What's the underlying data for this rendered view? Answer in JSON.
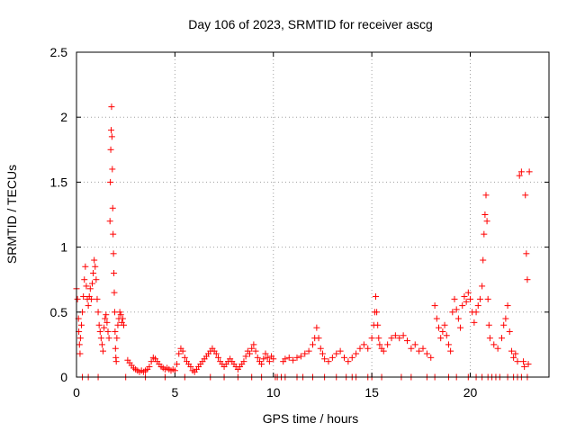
{
  "chart_data": {
    "type": "scatter",
    "title": "Day 106 of 2023, SRMTID for receiver ascg",
    "xlabel": "GPS time / hours",
    "ylabel": "SRMTID / TECUs",
    "xlim": [
      0,
      24
    ],
    "ylim": [
      0,
      2.5
    ],
    "x_ticks": [
      0,
      5,
      10,
      15,
      20
    ],
    "y_ticks": [
      0,
      0.5,
      1,
      1.5,
      2,
      2.5
    ],
    "x_tick_labels": [
      "0",
      "5",
      "10",
      "15",
      "20"
    ],
    "y_tick_labels": [
      "0",
      "0.5",
      "1",
      "1.5",
      "2",
      "2.5"
    ],
    "grid": true,
    "marker": "plus",
    "color": "#ff0000",
    "series": [
      {
        "name": "SRMTID",
        "points": [
          [
            0.0,
            0.68
          ],
          [
            0.05,
            0.6
          ],
          [
            0.1,
            0.45
          ],
          [
            0.12,
            0.35
          ],
          [
            0.15,
            0.25
          ],
          [
            0.18,
            0.18
          ],
          [
            0.2,
            0.3
          ],
          [
            0.25,
            0.4
          ],
          [
            0.3,
            0.5
          ],
          [
            0.35,
            0.62
          ],
          [
            0.4,
            0.75
          ],
          [
            0.45,
            0.85
          ],
          [
            0.5,
            0.7
          ],
          [
            0.55,
            0.6
          ],
          [
            0.6,
            0.55
          ],
          [
            0.65,
            0.62
          ],
          [
            0.7,
            0.68
          ],
          [
            0.75,
            0.6
          ],
          [
            0.8,
            0.72
          ],
          [
            0.85,
            0.8
          ],
          [
            0.9,
            0.9
          ],
          [
            0.95,
            0.85
          ],
          [
            1.0,
            0.75
          ],
          [
            1.05,
            0.6
          ],
          [
            1.1,
            0.5
          ],
          [
            1.15,
            0.4
          ],
          [
            1.2,
            0.35
          ],
          [
            1.25,
            0.3
          ],
          [
            1.3,
            0.25
          ],
          [
            1.35,
            0.2
          ],
          [
            1.4,
            0.38
          ],
          [
            1.45,
            0.45
          ],
          [
            1.5,
            0.48
          ],
          [
            1.55,
            0.42
          ],
          [
            1.6,
            0.35
          ],
          [
            1.65,
            0.3
          ],
          [
            1.7,
            1.2
          ],
          [
            1.72,
            1.5
          ],
          [
            1.74,
            1.75
          ],
          [
            1.76,
            1.9
          ],
          [
            1.78,
            2.08
          ],
          [
            1.8,
            1.85
          ],
          [
            1.82,
            1.6
          ],
          [
            1.84,
            1.3
          ],
          [
            1.86,
            1.1
          ],
          [
            1.88,
            0.95
          ],
          [
            1.9,
            0.8
          ],
          [
            1.92,
            0.65
          ],
          [
            1.94,
            0.5
          ],
          [
            1.96,
            0.35
          ],
          [
            1.98,
            0.22
          ],
          [
            2.0,
            0.15
          ],
          [
            2.02,
            0.12
          ],
          [
            2.05,
            0.3
          ],
          [
            2.1,
            0.4
          ],
          [
            2.15,
            0.45
          ],
          [
            2.2,
            0.5
          ],
          [
            2.25,
            0.48
          ],
          [
            2.3,
            0.42
          ],
          [
            2.35,
            0.45
          ],
          [
            2.4,
            0.4
          ],
          [
            2.6,
            0.13
          ],
          [
            2.7,
            0.11
          ],
          [
            2.8,
            0.09
          ],
          [
            2.9,
            0.07
          ],
          [
            3.0,
            0.06
          ],
          [
            3.1,
            0.05
          ],
          [
            3.2,
            0.04
          ],
          [
            3.3,
            0.05
          ],
          [
            3.4,
            0.04
          ],
          [
            3.5,
            0.05
          ],
          [
            3.6,
            0.06
          ],
          [
            3.7,
            0.08
          ],
          [
            3.8,
            0.12
          ],
          [
            3.9,
            0.15
          ],
          [
            4.0,
            0.14
          ],
          [
            4.1,
            0.12
          ],
          [
            4.2,
            0.1
          ],
          [
            4.3,
            0.08
          ],
          [
            4.4,
            0.07
          ],
          [
            4.5,
            0.06
          ],
          [
            4.6,
            0.07
          ],
          [
            4.7,
            0.06
          ],
          [
            4.8,
            0.05
          ],
          [
            4.9,
            0.06
          ],
          [
            5.0,
            0.05
          ],
          [
            5.1,
            0.1
          ],
          [
            5.2,
            0.18
          ],
          [
            5.3,
            0.22
          ],
          [
            5.4,
            0.2
          ],
          [
            5.5,
            0.15
          ],
          [
            5.6,
            0.12
          ],
          [
            5.7,
            0.1
          ],
          [
            5.8,
            0.08
          ],
          [
            5.9,
            0.05
          ],
          [
            6.0,
            0.04
          ],
          [
            6.1,
            0.06
          ],
          [
            6.2,
            0.08
          ],
          [
            6.3,
            0.1
          ],
          [
            6.4,
            0.12
          ],
          [
            6.5,
            0.14
          ],
          [
            6.6,
            0.16
          ],
          [
            6.7,
            0.18
          ],
          [
            6.8,
            0.2
          ],
          [
            6.9,
            0.22
          ],
          [
            7.0,
            0.2
          ],
          [
            7.1,
            0.18
          ],
          [
            7.2,
            0.15
          ],
          [
            7.3,
            0.12
          ],
          [
            7.4,
            0.1
          ],
          [
            7.5,
            0.08
          ],
          [
            7.6,
            0.1
          ],
          [
            7.7,
            0.12
          ],
          [
            7.8,
            0.14
          ],
          [
            7.9,
            0.12
          ],
          [
            8.0,
            0.1
          ],
          [
            8.1,
            0.08
          ],
          [
            8.2,
            0.06
          ],
          [
            8.3,
            0.08
          ],
          [
            8.4,
            0.1
          ],
          [
            8.5,
            0.12
          ],
          [
            8.6,
            0.16
          ],
          [
            8.7,
            0.2
          ],
          [
            8.8,
            0.18
          ],
          [
            8.9,
            0.22
          ],
          [
            9.0,
            0.25
          ],
          [
            9.1,
            0.2
          ],
          [
            9.2,
            0.15
          ],
          [
            9.3,
            0.12
          ],
          [
            9.4,
            0.1
          ],
          [
            9.5,
            0.14
          ],
          [
            9.6,
            0.18
          ],
          [
            9.7,
            0.15
          ],
          [
            9.8,
            0.12
          ],
          [
            9.9,
            0.16
          ],
          [
            10.0,
            0.14
          ],
          [
            10.5,
            0.12
          ],
          [
            10.6,
            0.14
          ],
          [
            10.8,
            0.15
          ],
          [
            11.0,
            0.13
          ],
          [
            11.2,
            0.15
          ],
          [
            11.4,
            0.16
          ],
          [
            11.6,
            0.18
          ],
          [
            11.8,
            0.2
          ],
          [
            12.0,
            0.25
          ],
          [
            12.1,
            0.3
          ],
          [
            12.2,
            0.38
          ],
          [
            12.3,
            0.3
          ],
          [
            12.4,
            0.22
          ],
          [
            12.5,
            0.18
          ],
          [
            12.6,
            0.14
          ],
          [
            12.8,
            0.12
          ],
          [
            13.0,
            0.15
          ],
          [
            13.2,
            0.18
          ],
          [
            13.4,
            0.2
          ],
          [
            13.6,
            0.15
          ],
          [
            13.8,
            0.12
          ],
          [
            14.0,
            0.15
          ],
          [
            14.2,
            0.18
          ],
          [
            14.4,
            0.22
          ],
          [
            14.6,
            0.25
          ],
          [
            14.8,
            0.22
          ],
          [
            15.0,
            0.3
          ],
          [
            15.1,
            0.4
          ],
          [
            15.15,
            0.5
          ],
          [
            15.2,
            0.62
          ],
          [
            15.25,
            0.5
          ],
          [
            15.3,
            0.4
          ],
          [
            15.35,
            0.3
          ],
          [
            15.4,
            0.25
          ],
          [
            15.5,
            0.22
          ],
          [
            15.6,
            0.2
          ],
          [
            15.8,
            0.25
          ],
          [
            16.0,
            0.3
          ],
          [
            16.2,
            0.32
          ],
          [
            16.4,
            0.3
          ],
          [
            16.6,
            0.32
          ],
          [
            16.8,
            0.28
          ],
          [
            17.0,
            0.22
          ],
          [
            17.2,
            0.25
          ],
          [
            17.4,
            0.2
          ],
          [
            17.6,
            0.22
          ],
          [
            17.8,
            0.18
          ],
          [
            18.0,
            0.15
          ],
          [
            18.2,
            0.55
          ],
          [
            18.3,
            0.45
          ],
          [
            18.4,
            0.38
          ],
          [
            18.5,
            0.3
          ],
          [
            18.6,
            0.35
          ],
          [
            18.7,
            0.4
          ],
          [
            18.8,
            0.32
          ],
          [
            18.9,
            0.25
          ],
          [
            19.0,
            0.2
          ],
          [
            19.1,
            0.5
          ],
          [
            19.2,
            0.6
          ],
          [
            19.3,
            0.52
          ],
          [
            19.4,
            0.45
          ],
          [
            19.5,
            0.38
          ],
          [
            19.6,
            0.55
          ],
          [
            19.7,
            0.62
          ],
          [
            19.8,
            0.58
          ],
          [
            19.9,
            0.65
          ],
          [
            20.0,
            0.6
          ],
          [
            20.1,
            0.5
          ],
          [
            20.2,
            0.42
          ],
          [
            20.3,
            0.5
          ],
          [
            20.4,
            0.55
          ],
          [
            20.5,
            0.6
          ],
          [
            20.6,
            0.7
          ],
          [
            20.65,
            0.9
          ],
          [
            20.7,
            1.1
          ],
          [
            20.75,
            1.25
          ],
          [
            20.8,
            1.4
          ],
          [
            20.85,
            1.2
          ],
          [
            20.9,
            0.6
          ],
          [
            20.95,
            0.4
          ],
          [
            21.0,
            0.3
          ],
          [
            21.2,
            0.25
          ],
          [
            21.4,
            0.22
          ],
          [
            21.6,
            0.3
          ],
          [
            21.7,
            0.4
          ],
          [
            21.8,
            0.45
          ],
          [
            21.9,
            0.55
          ],
          [
            22.0,
            0.35
          ],
          [
            22.1,
            0.2
          ],
          [
            22.2,
            0.15
          ],
          [
            22.3,
            0.18
          ],
          [
            22.4,
            0.12
          ],
          [
            22.5,
            1.55
          ],
          [
            22.6,
            1.58
          ],
          [
            22.7,
            0.12
          ],
          [
            22.75,
            0.08
          ],
          [
            22.8,
            1.4
          ],
          [
            22.85,
            0.95
          ],
          [
            22.9,
            0.75
          ],
          [
            22.95,
            0.1
          ],
          [
            23.0,
            1.58
          ]
        ]
      }
    ],
    "zero_points_x": [
      0.3,
      0.6,
      1.1,
      2.5,
      3.5,
      4.5,
      5.5,
      6.8,
      7.5,
      8.2,
      8.9,
      9.4,
      10.1,
      10.2,
      10.4,
      10.6,
      11.2,
      11.5,
      12.0,
      12.6,
      13.2,
      13.7,
      14.0,
      14.2,
      14.8,
      15.0,
      15.5,
      16.5,
      17.0,
      17.8,
      18.2,
      18.9,
      19.3,
      19.9,
      20.3,
      20.6,
      20.9,
      21.1,
      21.3,
      21.5,
      21.9,
      22.2,
      22.4,
      22.6,
      22.9
    ]
  }
}
